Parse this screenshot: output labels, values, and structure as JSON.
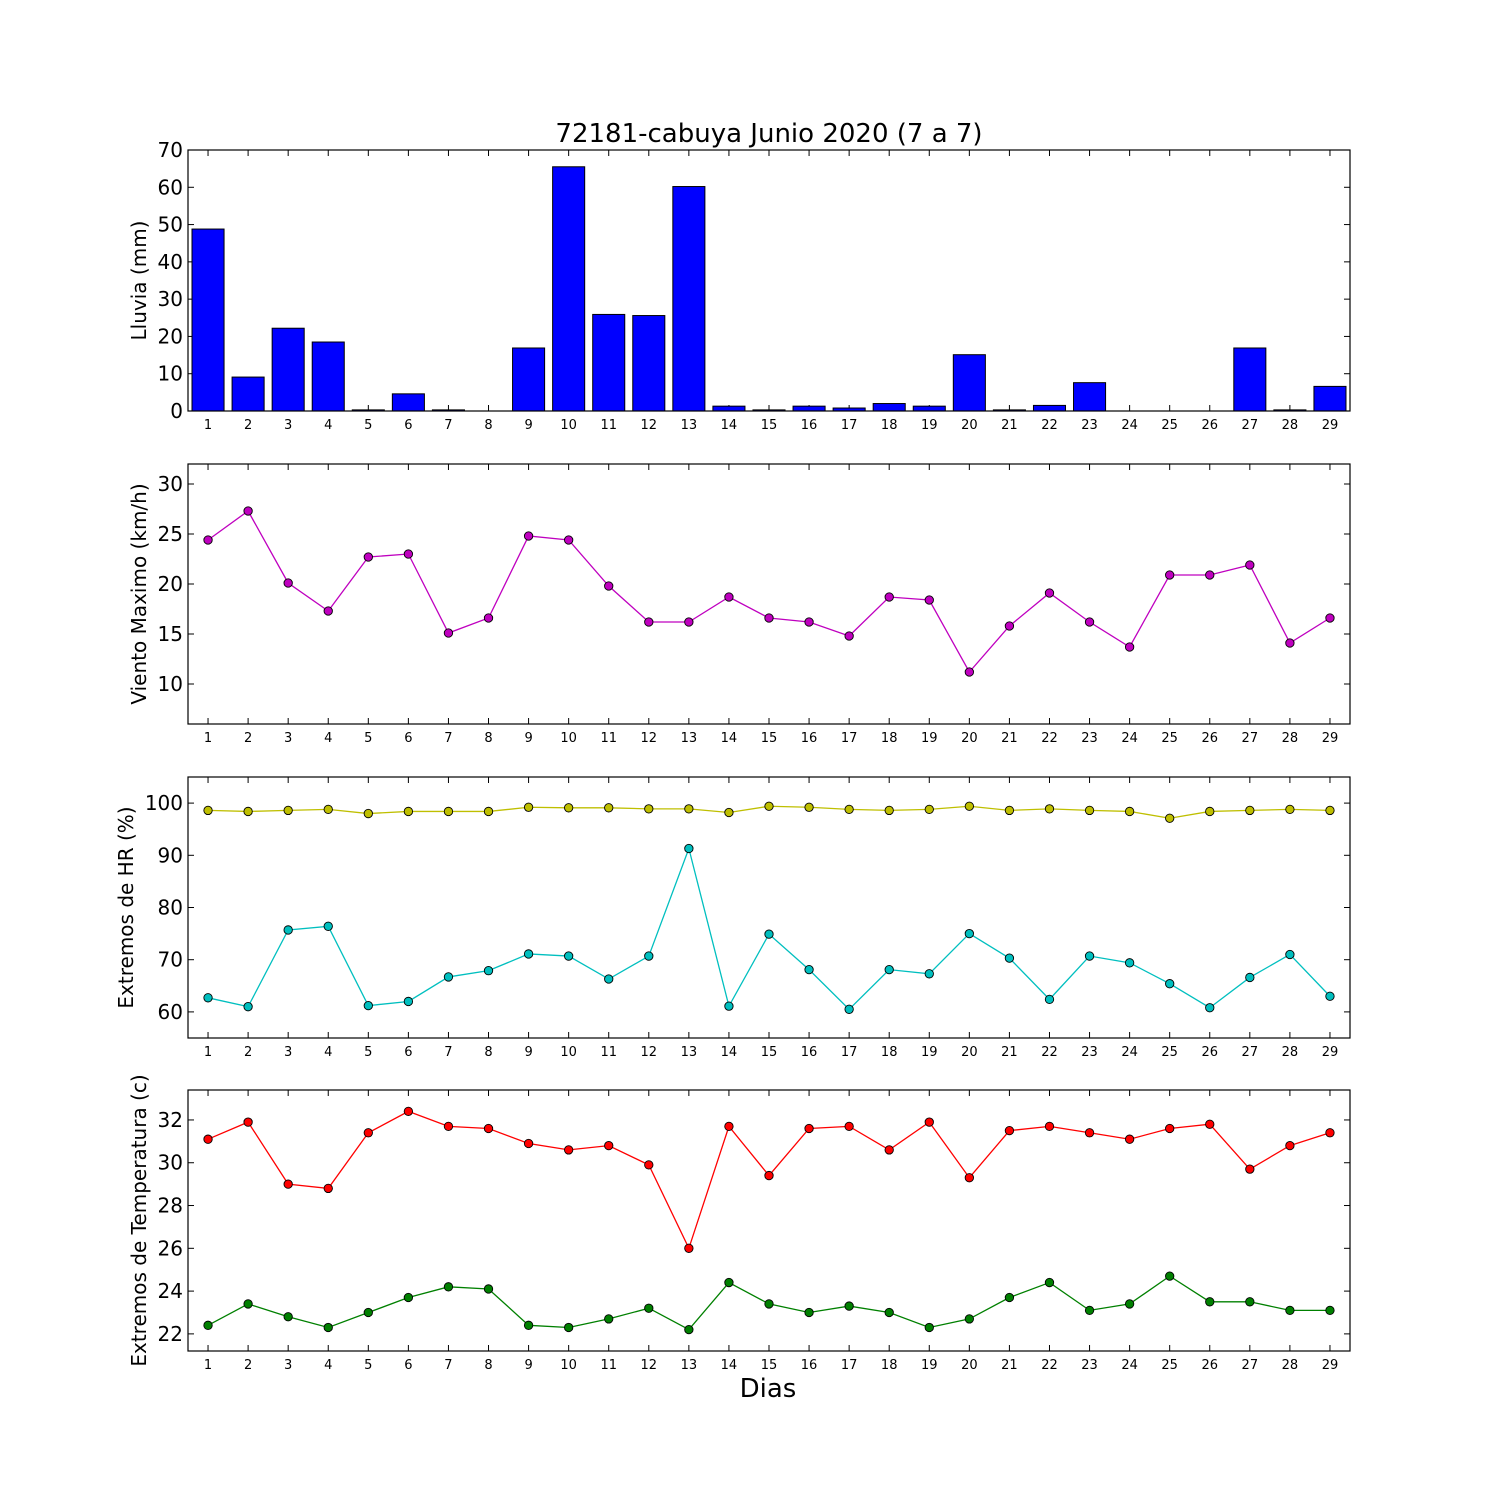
{
  "title": "72181-cabuya Junio 2020  (7 a 7)",
  "xlabel": "Dias",
  "chart_data": [
    {
      "type": "bar",
      "ylabel": "Lluvia (mm)",
      "ylim": [
        0,
        70
      ],
      "yticks": [
        0,
        10,
        20,
        30,
        40,
        50,
        60,
        70
      ],
      "categories": [
        1,
        2,
        3,
        4,
        5,
        6,
        7,
        8,
        9,
        10,
        11,
        12,
        13,
        14,
        15,
        16,
        17,
        18,
        19,
        20,
        21,
        22,
        23,
        24,
        25,
        26,
        27,
        28,
        29
      ],
      "series": [
        {
          "color": "#0000ff",
          "values": [
            48.8,
            9.1,
            22.2,
            18.5,
            0.3,
            4.6,
            0.3,
            0.0,
            16.9,
            65.5,
            25.9,
            25.6,
            60.2,
            1.3,
            0.3,
            1.3,
            0.8,
            2.0,
            1.3,
            15.1,
            0.3,
            1.5,
            7.6,
            0.0,
            0.0,
            0.0,
            16.9,
            0.3,
            6.6
          ]
        }
      ]
    },
    {
      "type": "line",
      "ylabel": "Viento Maximo (km/h)",
      "ylim": [
        6,
        32
      ],
      "yticks": [
        10,
        15,
        20,
        25,
        30
      ],
      "x": [
        1,
        2,
        3,
        4,
        5,
        6,
        7,
        8,
        9,
        10,
        11,
        12,
        13,
        14,
        15,
        16,
        17,
        18,
        19,
        20,
        21,
        22,
        23,
        24,
        25,
        26,
        27,
        28,
        29
      ],
      "series": [
        {
          "color": "#bf00bf",
          "values": [
            24.4,
            27.3,
            20.1,
            17.3,
            22.7,
            23.0,
            15.1,
            16.6,
            24.8,
            24.4,
            19.8,
            16.2,
            16.2,
            18.7,
            16.6,
            16.2,
            14.8,
            18.7,
            18.4,
            11.2,
            15.8,
            19.1,
            16.2,
            13.7,
            20.9,
            20.9,
            21.9,
            14.1,
            16.6
          ]
        }
      ]
    },
    {
      "type": "line",
      "ylabel": "Extremos de HR (%)",
      "ylim": [
        55,
        105
      ],
      "yticks": [
        60,
        70,
        80,
        90,
        100
      ],
      "x": [
        1,
        2,
        3,
        4,
        5,
        6,
        7,
        8,
        9,
        10,
        11,
        12,
        13,
        14,
        15,
        16,
        17,
        18,
        19,
        20,
        21,
        22,
        23,
        24,
        25,
        26,
        27,
        28,
        29
      ],
      "series": [
        {
          "color": "#bfbf00",
          "values": [
            98.6,
            98.4,
            98.6,
            98.8,
            98.0,
            98.4,
            98.4,
            98.4,
            99.2,
            99.1,
            99.1,
            98.9,
            98.9,
            98.2,
            99.4,
            99.2,
            98.8,
            98.6,
            98.8,
            99.4,
            98.6,
            98.9,
            98.6,
            98.4,
            97.1,
            98.4,
            98.6,
            98.8,
            98.6
          ]
        },
        {
          "color": "#00bfbf",
          "values": [
            62.7,
            61.0,
            75.7,
            76.4,
            61.2,
            62.0,
            66.7,
            67.9,
            71.1,
            70.7,
            66.3,
            70.7,
            91.3,
            61.1,
            74.9,
            68.1,
            60.5,
            68.1,
            67.3,
            75.0,
            70.3,
            62.4,
            70.7,
            69.4,
            65.4,
            60.8,
            66.6,
            71.0,
            63.0
          ]
        }
      ]
    },
    {
      "type": "line",
      "ylabel": "Extremos de Temperatura (c)",
      "ylim": [
        21.2,
        33.4
      ],
      "yticks": [
        22,
        24,
        26,
        28,
        30,
        32
      ],
      "x": [
        1,
        2,
        3,
        4,
        5,
        6,
        7,
        8,
        9,
        10,
        11,
        12,
        13,
        14,
        15,
        16,
        17,
        18,
        19,
        20,
        21,
        22,
        23,
        24,
        25,
        26,
        27,
        28,
        29
      ],
      "series": [
        {
          "color": "#ff0000",
          "values": [
            31.1,
            31.9,
            29.0,
            28.8,
            31.4,
            32.4,
            31.7,
            31.6,
            30.9,
            30.6,
            30.8,
            29.9,
            26.0,
            31.7,
            29.4,
            31.6,
            31.7,
            30.6,
            31.9,
            29.3,
            31.5,
            31.7,
            31.4,
            31.1,
            31.6,
            31.8,
            29.7,
            30.8,
            31.4
          ]
        },
        {
          "color": "#008000",
          "values": [
            22.4,
            23.4,
            22.8,
            22.3,
            23.0,
            23.7,
            24.2,
            24.1,
            22.4,
            22.3,
            22.7,
            23.2,
            22.2,
            24.4,
            23.4,
            23.0,
            23.3,
            23.0,
            22.3,
            22.7,
            23.7,
            24.4,
            23.1,
            23.4,
            24.7,
            23.5,
            23.5,
            23.1,
            23.1
          ]
        }
      ]
    }
  ]
}
